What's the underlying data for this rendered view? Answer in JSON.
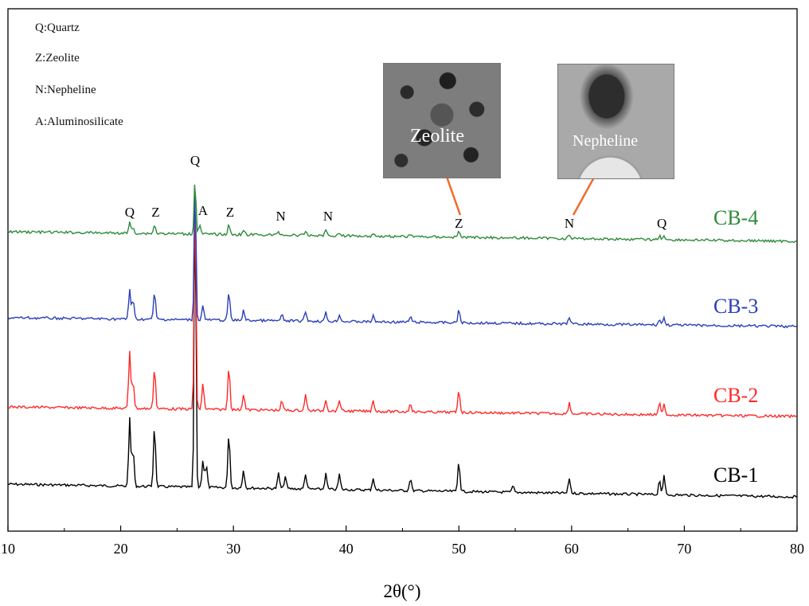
{
  "legend": [
    "Q:Quartz",
    "Z:Zeolite",
    "N:Nepheline",
    "A:Aluminosilicate"
  ],
  "insets": [
    {
      "label": "Zeolite"
    },
    {
      "label": "Nepheline"
    }
  ],
  "colors": {
    "cb1": "#000000",
    "cb2": "#ff2a2a",
    "cb3": "#2b3fb8",
    "cb4": "#2e8b3a",
    "arrow": "#f46a2a"
  },
  "chart_data": {
    "type": "line",
    "title": "",
    "xlabel": "2θ(°)",
    "ylabel": "",
    "xlim": [
      10,
      80
    ],
    "xticks": [
      "10",
      "20",
      "30",
      "40",
      "50",
      "60",
      "70",
      "80"
    ],
    "grid": false,
    "series_labels_placement": "right, beside each trace",
    "series": [
      {
        "name": "CB-1",
        "color": "#000000",
        "peaks": [
          [
            20.8,
            0.22
          ],
          [
            21.1,
            0.12
          ],
          [
            23.0,
            0.2
          ],
          [
            26.6,
            1.0
          ],
          [
            27.3,
            0.09
          ],
          [
            27.6,
            0.07
          ],
          [
            29.6,
            0.18
          ],
          [
            30.9,
            0.06
          ],
          [
            34.0,
            0.05
          ],
          [
            34.6,
            0.04
          ],
          [
            36.4,
            0.05
          ],
          [
            38.2,
            0.05
          ],
          [
            39.4,
            0.05
          ],
          [
            42.4,
            0.04
          ],
          [
            45.7,
            0.04
          ],
          [
            50.0,
            0.1
          ],
          [
            54.8,
            0.02
          ],
          [
            59.8,
            0.05
          ],
          [
            67.8,
            0.05
          ],
          [
            68.2,
            0.06
          ]
        ]
      },
      {
        "name": "CB-2",
        "color": "#ff2a2a",
        "peaks": [
          [
            20.8,
            0.25
          ],
          [
            21.1,
            0.12
          ],
          [
            23.0,
            0.18
          ],
          [
            26.6,
            1.0
          ],
          [
            27.3,
            0.11
          ],
          [
            29.6,
            0.19
          ],
          [
            30.9,
            0.07
          ],
          [
            34.3,
            0.04
          ],
          [
            36.4,
            0.07
          ],
          [
            38.2,
            0.05
          ],
          [
            39.4,
            0.05
          ],
          [
            42.4,
            0.05
          ],
          [
            45.7,
            0.04
          ],
          [
            50.0,
            0.1
          ],
          [
            59.8,
            0.05
          ],
          [
            67.8,
            0.05
          ],
          [
            68.2,
            0.05
          ]
        ]
      },
      {
        "name": "CB-3",
        "color": "#2b3fb8",
        "peaks": [
          [
            20.8,
            0.21
          ],
          [
            21.1,
            0.13
          ],
          [
            23.0,
            0.19
          ],
          [
            26.6,
            1.0
          ],
          [
            27.3,
            0.1
          ],
          [
            29.6,
            0.2
          ],
          [
            30.9,
            0.07
          ],
          [
            34.3,
            0.04
          ],
          [
            36.4,
            0.07
          ],
          [
            38.2,
            0.06
          ],
          [
            39.4,
            0.05
          ],
          [
            42.4,
            0.04
          ],
          [
            45.7,
            0.04
          ],
          [
            50.0,
            0.09
          ],
          [
            59.8,
            0.05
          ],
          [
            67.8,
            0.04
          ],
          [
            68.2,
            0.05
          ]
        ]
      },
      {
        "name": "CB-4",
        "color": "#2e8b3a",
        "peaks": [
          [
            20.8,
            0.11
          ],
          [
            21.1,
            0.06
          ],
          [
            23.0,
            0.09
          ],
          [
            26.6,
            0.6
          ],
          [
            27.0,
            0.1
          ],
          [
            29.6,
            0.1
          ],
          [
            30.9,
            0.04
          ],
          [
            34.0,
            0.04
          ],
          [
            36.4,
            0.04
          ],
          [
            38.2,
            0.06
          ],
          [
            39.4,
            0.03
          ],
          [
            42.4,
            0.03
          ],
          [
            45.7,
            0.03
          ],
          [
            50.0,
            0.06
          ],
          [
            59.8,
            0.04
          ],
          [
            67.8,
            0.04
          ],
          [
            68.2,
            0.04
          ]
        ]
      }
    ],
    "peak_annotations": [
      {
        "text": "Q",
        "x": 20.8
      },
      {
        "text": "Z",
        "x": 23.1
      },
      {
        "text": "Q",
        "x": 26.6
      },
      {
        "text": "A",
        "x": 27.3
      },
      {
        "text": "Z",
        "x": 29.7
      },
      {
        "text": "N",
        "x": 34.2
      },
      {
        "text": "N",
        "x": 38.4
      },
      {
        "text": "Z",
        "x": 50.0
      },
      {
        "text": "N",
        "x": 59.8
      },
      {
        "text": "Q",
        "x": 68.0
      }
    ]
  }
}
